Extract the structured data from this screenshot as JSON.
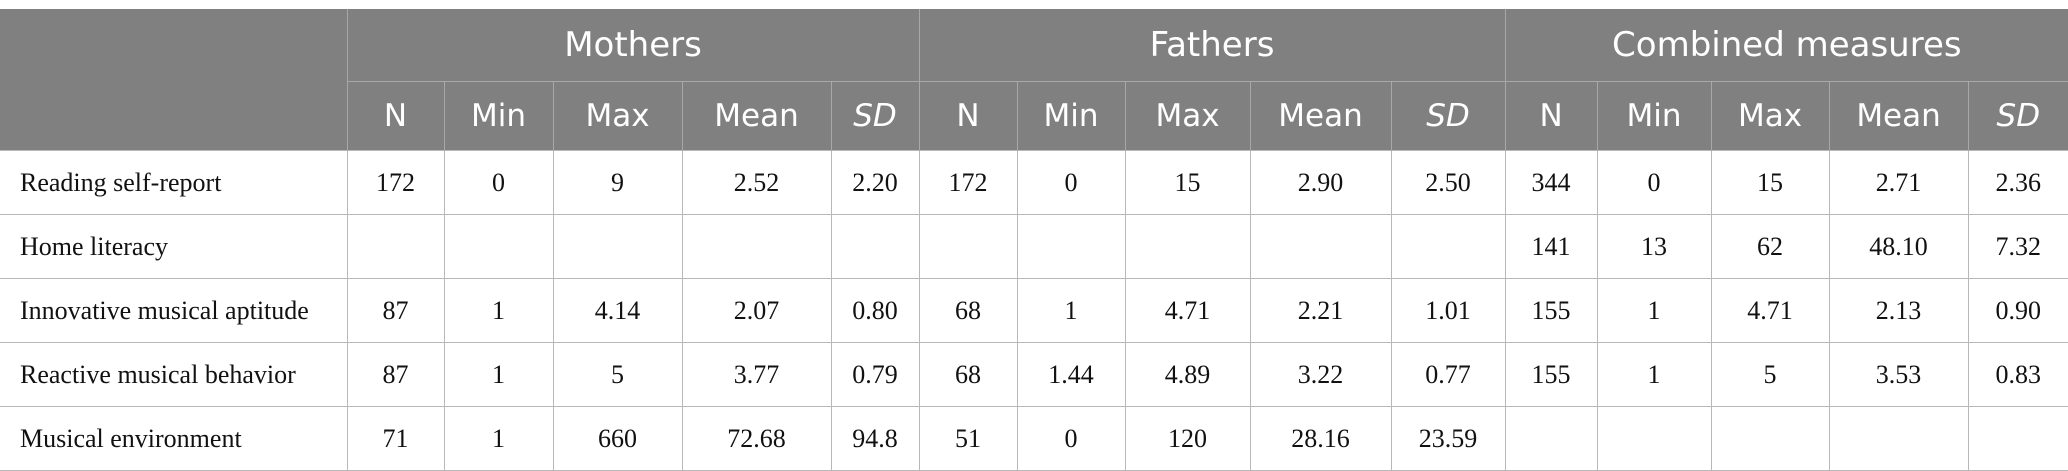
{
  "table": {
    "groups": [
      {
        "name": "Mothers",
        "columns": [
          "N",
          "Min",
          "Max",
          "Mean",
          "SD"
        ]
      },
      {
        "name": "Fathers",
        "columns": [
          "N",
          "Min",
          "Max",
          "Mean",
          "SD"
        ]
      },
      {
        "name": "Combined measures",
        "columns": [
          "N",
          "Min",
          "Max",
          "Mean",
          "SD"
        ]
      }
    ],
    "rows": [
      {
        "label": "Reading self-report",
        "values": [
          "172",
          "0",
          "9",
          "2.52",
          "2.20",
          "172",
          "0",
          "15",
          "2.90",
          "2.50",
          "344",
          "0",
          "15",
          "2.71",
          "2.36"
        ]
      },
      {
        "label": "Home literacy",
        "values": [
          null,
          null,
          null,
          null,
          null,
          null,
          null,
          null,
          null,
          null,
          "141",
          "13",
          "62",
          "48.10",
          "7.32"
        ]
      },
      {
        "label": "Innovative musical aptitude",
        "values": [
          "87",
          "1",
          "4.14",
          "2.07",
          "0.80",
          "68",
          "1",
          "4.71",
          "2.21",
          "1.01",
          "155",
          "1",
          "4.71",
          "2.13",
          "0.90"
        ]
      },
      {
        "label": "Reactive musical behavior",
        "values": [
          "87",
          "1",
          "5",
          "3.77",
          "0.79",
          "68",
          "1.44",
          "4.89",
          "3.22",
          "0.77",
          "155",
          "1",
          "5",
          "3.53",
          "0.83"
        ]
      },
      {
        "label": "Musical environment",
        "values": [
          "71",
          "1",
          "660",
          "72.68",
          "94.8",
          "51",
          "0",
          "120",
          "28.16",
          "23.59",
          null,
          null,
          null,
          null,
          null
        ]
      }
    ]
  }
}
